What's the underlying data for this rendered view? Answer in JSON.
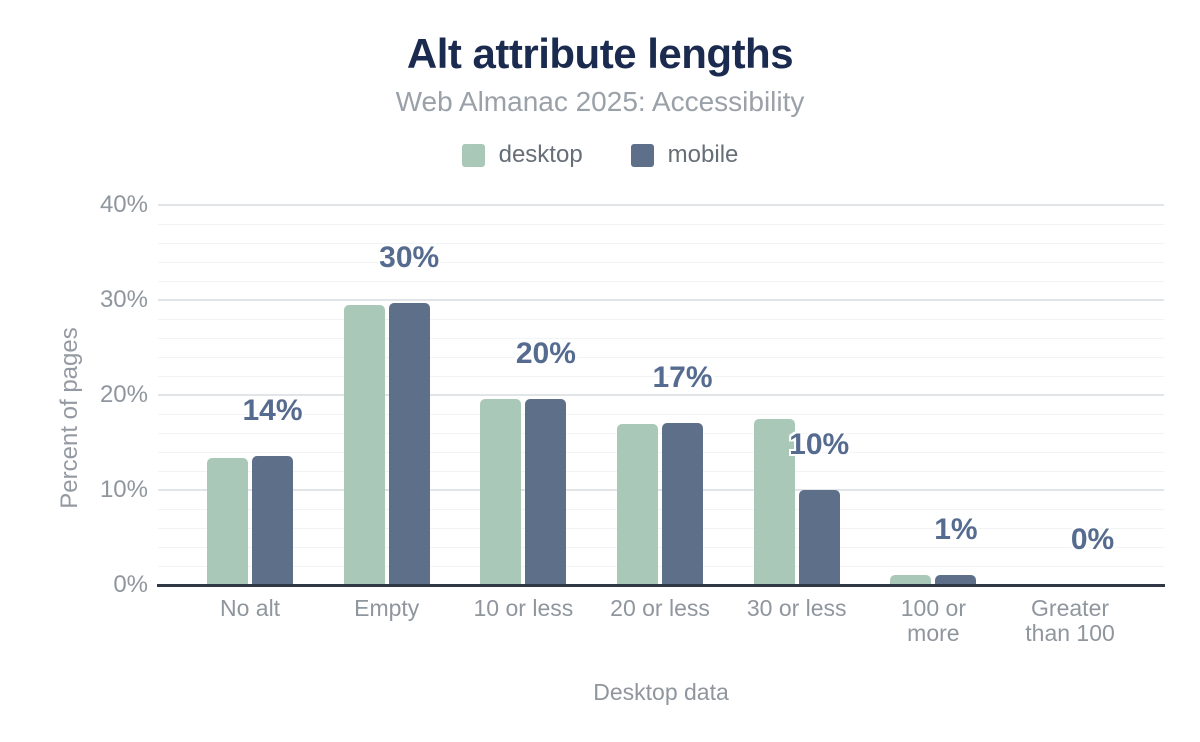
{
  "title": "Alt attribute lengths",
  "subtitle": "Web Almanac 2025: Accessibility",
  "legend": {
    "items": [
      {
        "label": "desktop",
        "color": "#a9c8b7"
      },
      {
        "label": "mobile",
        "color": "#5e7089"
      }
    ]
  },
  "axes": {
    "y_title": "Percent of pages",
    "x_title": "Desktop data",
    "y_ticks": [
      "0%",
      "10%",
      "20%",
      "30%",
      "40%"
    ],
    "y_tick_values": [
      0,
      10,
      20,
      30,
      40
    ],
    "y_minor_step": 2
  },
  "colors": {
    "title": "#1b2a4f",
    "subtitle": "#9aa1a9",
    "tick_text": "#8f969e",
    "legend_text": "#666e78",
    "data_label": "#566b90",
    "axis_line": "#2f3844",
    "major_grid": "#e2e5e8",
    "minor_grid": "#f2f3f5",
    "desktop_bar": "#a9c8b7",
    "mobile_bar": "#5e7089"
  },
  "chart_data": {
    "type": "bar",
    "title": "Alt attribute lengths",
    "subtitle": "Web Almanac 2025: Accessibility",
    "categories": [
      "No alt",
      "Empty",
      "10 or less",
      "20 or less",
      "30 or less",
      "100 or more",
      "Greater than 100"
    ],
    "series": [
      {
        "name": "desktop",
        "color": "#a9c8b7",
        "values": [
          13.4,
          29.5,
          19.6,
          16.9,
          17.5,
          1.0,
          0
        ]
      },
      {
        "name": "mobile",
        "color": "#5e7089",
        "values": [
          13.6,
          29.7,
          19.6,
          17.1,
          10.0,
          1.1,
          0
        ]
      }
    ],
    "data_labels": [
      "14%",
      "30%",
      "20%",
      "17%",
      "10%",
      "1%",
      "0%"
    ],
    "xlabel": "Desktop data",
    "ylabel": "Percent of pages",
    "ylim": [
      0,
      40
    ],
    "grid": true,
    "legend_position": "top"
  }
}
